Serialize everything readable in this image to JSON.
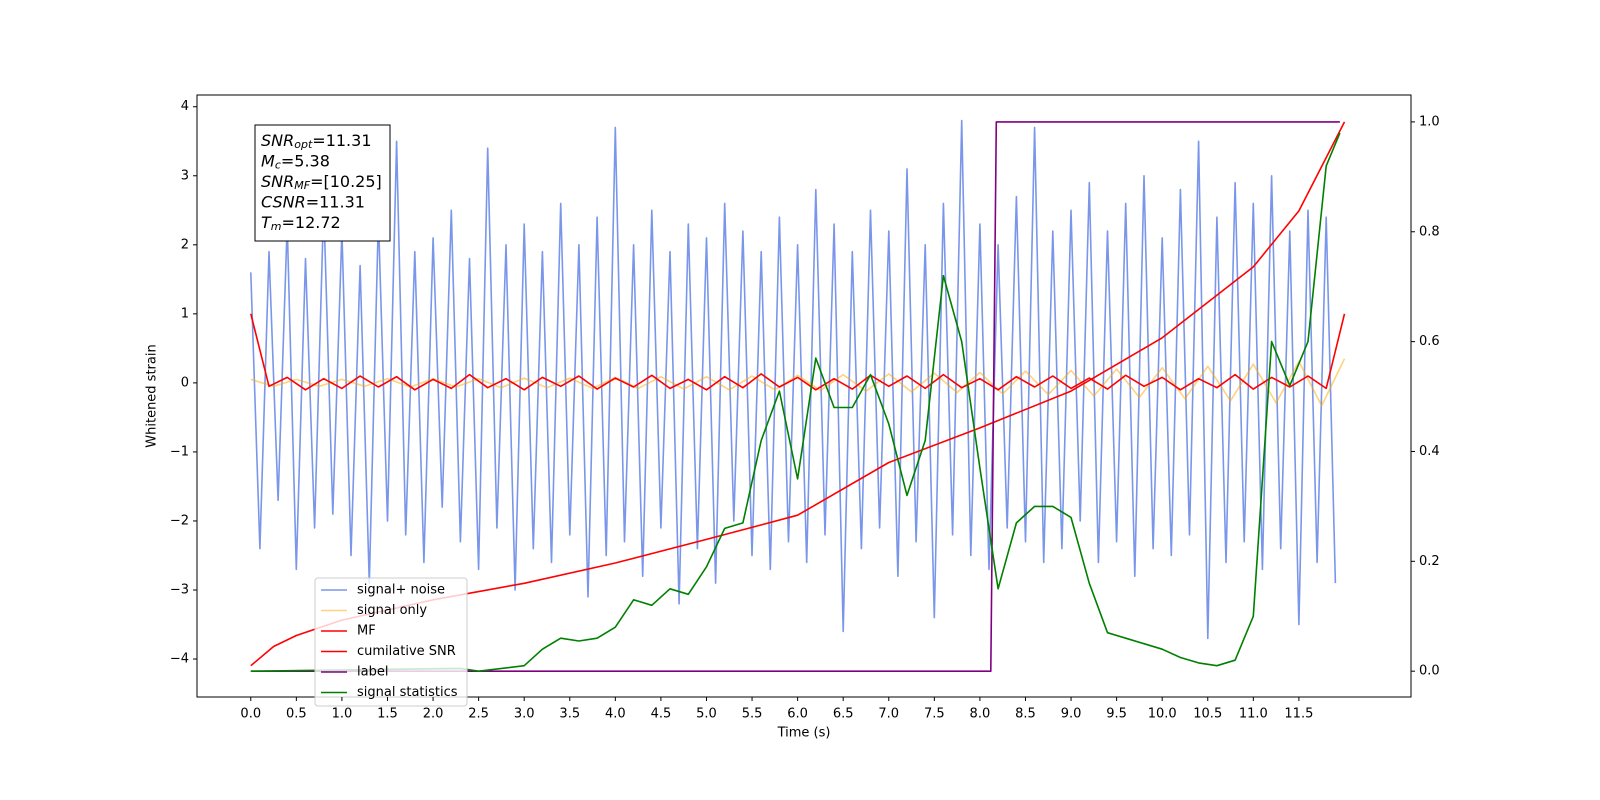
{
  "chart_data": {
    "type": "line",
    "xlabel": "Time (s)",
    "ylabel": "Whitened strain",
    "xlim": [
      -0.59,
      12.73
    ],
    "ylim": [
      -4.55,
      4.17
    ],
    "y2lim": [
      -0.047,
      1.049
    ],
    "xticks": [
      {
        "value": 0,
        "label": "0.0"
      },
      0.5,
      {
        "value": 1,
        "label": "1.0"
      },
      1.5,
      {
        "value": 2,
        "label": "2.0"
      },
      2.5,
      {
        "value": 3,
        "label": "3.0"
      },
      3.5,
      {
        "value": 4,
        "label": "4.0"
      },
      4.5,
      {
        "value": 5,
        "label": "5.0"
      },
      5.5,
      {
        "value": 6,
        "label": "6.0"
      },
      6.5,
      {
        "value": 7,
        "label": "7.0"
      },
      7.5,
      {
        "value": 8,
        "label": "8.0"
      },
      8.5,
      {
        "value": 9,
        "label": "9.0"
      },
      9.5,
      {
        "value": 10,
        "label": "10.0"
      },
      10.5,
      {
        "value": 11,
        "label": "11.0"
      },
      11.5
    ],
    "yticks": [
      {
        "value": -4,
        "label": "−4"
      },
      {
        "value": -3,
        "label": "−3"
      },
      {
        "value": -2,
        "label": "−2"
      },
      {
        "value": -1,
        "label": "−1"
      },
      0,
      1,
      2,
      3,
      4
    ],
    "y2ticks": [
      {
        "value": 0,
        "label": "0.0"
      },
      0.2,
      0.4,
      0.6,
      0.8,
      {
        "value": 1,
        "label": "1.0"
      }
    ],
    "legend": "lower left",
    "annotation_lines": [
      {
        "text": "SNR",
        "sub": "opt",
        "value": "=11.31"
      },
      {
        "text": "M",
        "sub": "c",
        "value": "=5.38"
      },
      {
        "text": "SNR",
        "sub": "MF",
        "value": "=[10.25]"
      },
      {
        "text": "CSNR",
        "value": "=11.31"
      },
      {
        "text": "T",
        "sub": "m",
        "value": "=12.72"
      }
    ],
    "series": [
      {
        "name": "signal+ noise",
        "color": "#4169e1",
        "opacity": 0.7,
        "x": [
          0,
          0.1,
          0.2,
          0.3,
          0.4,
          0.5,
          0.6,
          0.7,
          0.8,
          0.9,
          1,
          1.1,
          1.2,
          1.3,
          1.4,
          1.5,
          1.6,
          1.7,
          1.8,
          1.9,
          2,
          2.1,
          2.2,
          2.3,
          2.4,
          2.5,
          2.6,
          2.7,
          2.8,
          2.9,
          3,
          3.1,
          3.2,
          3.3,
          3.4,
          3.5,
          3.6,
          3.7,
          3.8,
          3.9,
          4,
          4.1,
          4.2,
          4.3,
          4.4,
          4.5,
          4.6,
          4.7,
          4.8,
          4.9,
          5,
          5.1,
          5.2,
          5.3,
          5.4,
          5.5,
          5.6,
          5.7,
          5.8,
          5.9,
          6,
          6.1,
          6.2,
          6.3,
          6.4,
          6.5,
          6.6,
          6.7,
          6.8,
          6.9,
          7,
          7.1,
          7.2,
          7.3,
          7.4,
          7.5,
          7.6,
          7.7,
          7.8,
          7.9,
          8,
          8.1,
          8.2,
          8.3,
          8.4,
          8.5,
          8.6,
          8.7,
          8.8,
          8.9,
          9,
          9.1,
          9.2,
          9.3,
          9.4,
          9.5,
          9.6,
          9.7,
          9.8,
          9.9,
          10,
          10.1,
          10.2,
          10.3,
          10.4,
          10.5,
          10.6,
          10.7,
          10.8,
          10.9,
          11,
          11.1,
          11.2,
          11.3,
          11.4,
          11.5,
          11.6,
          11.7,
          11.8,
          11.9
        ],
        "values": [
          1.6,
          -2.4,
          1.9,
          -1.7,
          2.3,
          -2.7,
          1.8,
          -2.1,
          2.6,
          -1.9,
          2.2,
          -2.5,
          1.7,
          -2.9,
          2.4,
          -2.0,
          3.5,
          -2.2,
          1.9,
          -2.6,
          2.1,
          -1.8,
          2.5,
          -2.3,
          1.8,
          -2.7,
          3.4,
          -2.1,
          2.0,
          -3.0,
          2.3,
          -2.4,
          1.9,
          -2.6,
          2.6,
          -2.2,
          2.0,
          -3.1,
          2.4,
          -2.5,
          3.7,
          -2.3,
          2.0,
          -2.8,
          2.5,
          -2.1,
          1.9,
          -3.2,
          2.3,
          -2.4,
          2.1,
          -2.9,
          2.6,
          -2.0,
          2.2,
          -2.5,
          1.9,
          -2.7,
          2.4,
          -2.3,
          2.0,
          -2.6,
          2.8,
          -2.2,
          2.3,
          -3.6,
          1.9,
          -2.4,
          2.5,
          -2.1,
          2.2,
          -2.8,
          3.1,
          -2.3,
          2.0,
          -3.4,
          2.6,
          -2.2,
          3.8,
          -2.5,
          2.3,
          -2.7,
          2.0,
          -2.1,
          2.7,
          -2.3,
          3.7,
          -2.6,
          2.2,
          -2.4,
          2.5,
          -2.0,
          2.9,
          -2.6,
          2.2,
          -2.3,
          2.6,
          -2.8,
          3.0,
          -2.4,
          2.1,
          -2.5,
          2.8,
          -2.2,
          3.5,
          -3.7,
          2.4,
          -2.6,
          2.9,
          -2.3,
          2.6,
          -2.7,
          3.0,
          -2.4,
          2.2,
          -3.5,
          2.5,
          -2.6,
          2.4,
          -2.9
        ]
      },
      {
        "name": "signal only",
        "color": "#ffa500",
        "opacity": 0.5,
        "x": [
          0,
          0.25,
          0.5,
          0.75,
          1,
          1.25,
          1.5,
          1.75,
          2,
          2.25,
          2.5,
          2.75,
          3,
          3.25,
          3.5,
          3.75,
          4,
          4.25,
          4.5,
          4.75,
          5,
          5.25,
          5.5,
          5.75,
          6,
          6.25,
          6.5,
          6.75,
          7,
          7.25,
          7.5,
          7.75,
          8,
          8.25,
          8.5,
          8.75,
          9,
          9.25,
          9.5,
          9.75,
          10,
          10.25,
          10.5,
          10.75,
          11,
          11.25,
          11.5,
          11.75,
          12
        ],
        "values": [
          0.05,
          -0.05,
          0.05,
          -0.05,
          0.05,
          -0.05,
          0.06,
          -0.06,
          0.06,
          -0.06,
          0.06,
          -0.07,
          0.07,
          -0.07,
          0.07,
          -0.08,
          0.08,
          -0.08,
          0.09,
          -0.09,
          0.09,
          -0.1,
          0.1,
          -0.1,
          0.11,
          -0.11,
          0.12,
          -0.12,
          0.13,
          -0.13,
          0.14,
          -0.14,
          0.15,
          -0.16,
          0.17,
          -0.17,
          0.18,
          -0.19,
          0.2,
          -0.21,
          0.22,
          -0.23,
          0.24,
          -0.26,
          0.27,
          -0.29,
          0.31,
          -0.33,
          0.35
        ]
      },
      {
        "name": "MF",
        "color": "#ff0000",
        "opacity": 1,
        "x": [
          0,
          0.2,
          0.4,
          0.6,
          0.8,
          1,
          1.2,
          1.4,
          1.6,
          1.8,
          2,
          2.2,
          2.4,
          2.6,
          2.8,
          3,
          3.2,
          3.4,
          3.6,
          3.8,
          4,
          4.2,
          4.4,
          4.6,
          4.8,
          5,
          5.2,
          5.4,
          5.6,
          5.8,
          6,
          6.2,
          6.4,
          6.6,
          6.8,
          7,
          7.2,
          7.4,
          7.6,
          7.8,
          8,
          8.2,
          8.4,
          8.6,
          8.8,
          9,
          9.2,
          9.4,
          9.6,
          9.8,
          10,
          10.2,
          10.4,
          10.6,
          10.8,
          11,
          11.2,
          11.4,
          11.6,
          11.8,
          12
        ],
        "values": [
          1.0,
          -0.05,
          0.08,
          -0.1,
          0.06,
          -0.08,
          0.1,
          -0.06,
          0.09,
          -0.1,
          0.05,
          -0.08,
          0.12,
          -0.07,
          0.06,
          -0.1,
          0.08,
          -0.05,
          0.1,
          -0.09,
          0.07,
          -0.06,
          0.11,
          -0.08,
          0.05,
          -0.1,
          0.09,
          -0.07,
          0.13,
          -0.06,
          0.08,
          -0.1,
          0.06,
          -0.09,
          0.11,
          -0.05,
          0.1,
          -0.08,
          0.12,
          -0.07,
          0.06,
          -0.1,
          0.09,
          -0.06,
          0.1,
          -0.08,
          0.07,
          -0.09,
          0.11,
          -0.05,
          0.08,
          -0.1,
          0.06,
          -0.07,
          0.12,
          -0.09,
          0.08,
          -0.06,
          0.1,
          -0.08,
          1.0
        ]
      },
      {
        "name": "cumilative SNR",
        "color": "#ff0000",
        "opacity": 1,
        "axis": "y2",
        "x": [
          0,
          0.25,
          0.5,
          1,
          2,
          3,
          4,
          5,
          6,
          7,
          8,
          9,
          10,
          11,
          11.5,
          12
        ],
        "values": [
          0.01,
          0.045,
          0.065,
          0.093,
          0.13,
          0.16,
          0.197,
          0.24,
          0.284,
          0.38,
          0.443,
          0.51,
          0.607,
          0.736,
          0.838,
          1.0
        ]
      },
      {
        "name": "label",
        "color": "#800080",
        "opacity": 1,
        "axis": "y2",
        "x": [
          0,
          8.12,
          8.18,
          11.95
        ],
        "values": [
          0,
          0,
          1,
          1
        ]
      },
      {
        "name": "signal statistics",
        "color": "#008000",
        "opacity": 1,
        "axis": "y2",
        "x": [
          0,
          2.3,
          2.5,
          3.0,
          3.2,
          3.4,
          3.6,
          3.8,
          4.0,
          4.2,
          4.4,
          4.6,
          4.8,
          5.0,
          5.2,
          5.4,
          5.6,
          5.8,
          6.0,
          6.2,
          6.4,
          6.6,
          6.8,
          7.0,
          7.2,
          7.4,
          7.6,
          7.8,
          8.0,
          8.2,
          8.4,
          8.6,
          8.8,
          9.0,
          9.2,
          9.4,
          9.6,
          9.8,
          10.0,
          10.2,
          10.4,
          10.6,
          10.8,
          11.0,
          11.2,
          11.4,
          11.6,
          11.8,
          11.95
        ],
        "values": [
          0.0,
          0.005,
          0.0,
          0.01,
          0.04,
          0.06,
          0.055,
          0.06,
          0.08,
          0.13,
          0.12,
          0.15,
          0.14,
          0.19,
          0.26,
          0.27,
          0.42,
          0.51,
          0.35,
          0.57,
          0.48,
          0.48,
          0.54,
          0.45,
          0.32,
          0.42,
          0.72,
          0.6,
          0.37,
          0.15,
          0.27,
          0.3,
          0.3,
          0.28,
          0.16,
          0.07,
          0.06,
          0.05,
          0.04,
          0.025,
          0.015,
          0.01,
          0.02,
          0.1,
          0.6,
          0.52,
          0.6,
          0.92,
          0.98
        ]
      }
    ]
  }
}
